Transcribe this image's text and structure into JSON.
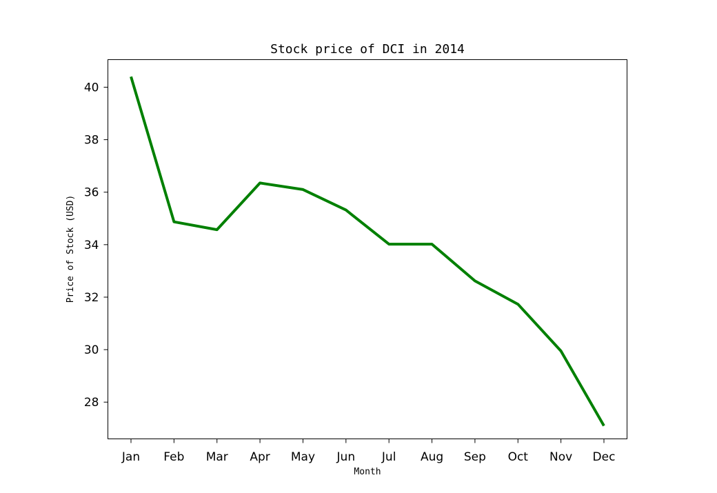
{
  "chart_data": {
    "type": "line",
    "title": "Stock price of DCI in 2014",
    "xlabel": "Month",
    "ylabel": "Price of Stock (USD)",
    "categories": [
      "Jan",
      "Feb",
      "Mar",
      "Apr",
      "May",
      "Jun",
      "Jul",
      "Aug",
      "Sep",
      "Oct",
      "Nov",
      "Dec"
    ],
    "series": [
      {
        "values": [
          40.4,
          34.87,
          34.57,
          36.35,
          36.1,
          35.32,
          34.02,
          34.02,
          32.62,
          31.73,
          29.95,
          27.1
        ],
        "color": "#008000"
      }
    ],
    "yticks": [
      28,
      30,
      32,
      34,
      36,
      38,
      40
    ],
    "ylim": [
      26.6,
      41.05
    ],
    "grid": false,
    "legend": "none"
  }
}
